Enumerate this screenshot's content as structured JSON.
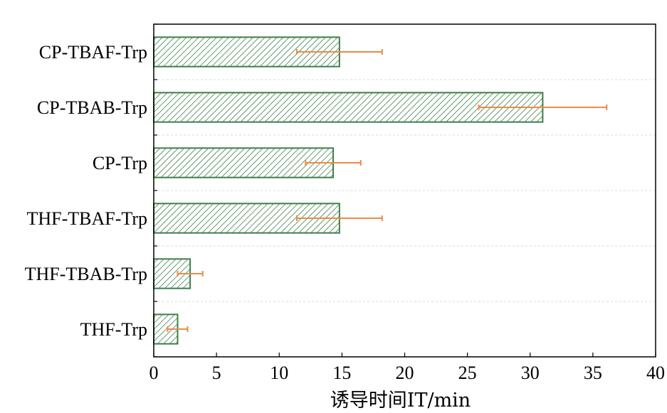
{
  "chart_data": {
    "type": "bar",
    "orientation": "horizontal",
    "title": "",
    "xlabel": "诱导时间IT/min",
    "ylabel": "",
    "xlim": [
      0,
      40
    ],
    "xticks": [
      0,
      5,
      10,
      15,
      20,
      25,
      30,
      35,
      40
    ],
    "categories": [
      "CP-TBAF-Trp",
      "CP-TBAB-Trp",
      "CP-Trp",
      "THF-TBAF-Trp",
      "THF-TBAB-Trp",
      "THF-Trp"
    ],
    "values": [
      14.8,
      31.0,
      14.3,
      14.8,
      2.9,
      1.9
    ],
    "errors": [
      3.4,
      5.1,
      2.2,
      3.4,
      1.0,
      0.8
    ],
    "grid": "horizontal-dashed",
    "bar_color": "#3d7f4a",
    "hatch": "diagonal",
    "error_color": "#ee8a45"
  }
}
